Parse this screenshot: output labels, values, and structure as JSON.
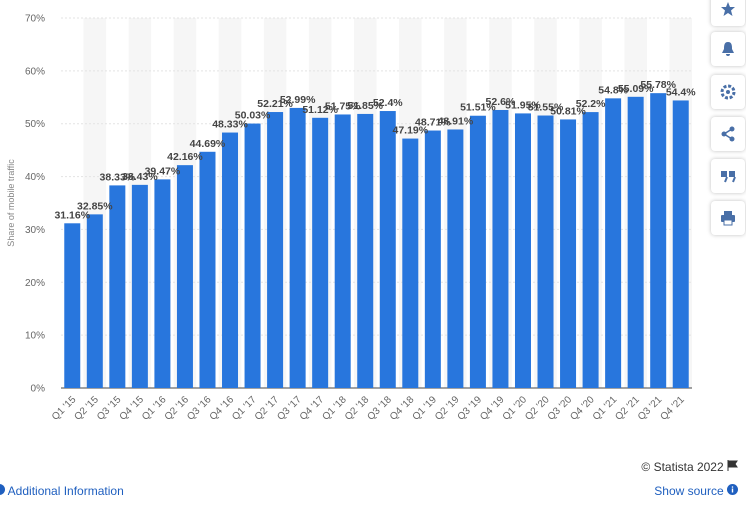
{
  "chart_data": {
    "type": "bar",
    "y_label": "Share of mobile traffic",
    "categories": [
      "Q1 '15",
      "Q2 '15",
      "Q3 '15",
      "Q4 '15",
      "Q1 '16",
      "Q2 '16",
      "Q3 '16",
      "Q4 '16",
      "Q1 '17",
      "Q2 '17",
      "Q3 '17",
      "Q4 '17",
      "Q1 '18",
      "Q2 '18",
      "Q3 '18",
      "Q4 '18",
      "Q1 '19",
      "Q2 '19",
      "Q3 '19",
      "Q4 '19",
      "Q1 '20",
      "Q2 '20",
      "Q3 '20",
      "Q4 '20",
      "Q1 '21",
      "Q2 '21",
      "Q3 '21",
      "Q4 '21"
    ],
    "values": [
      31.16,
      32.85,
      38.33,
      38.43,
      39.47,
      42.16,
      44.69,
      48.33,
      50.03,
      52.21,
      52.99,
      51.12,
      51.75,
      51.85,
      52.4,
      47.19,
      48.71,
      48.91,
      51.51,
      52.6,
      51.95,
      51.55,
      50.81,
      52.2,
      54.8,
      55.09,
      55.78,
      54.4
    ],
    "value_labels": [
      "31.16%",
      "32.85%",
      "38.33%",
      "38.43%",
      "39.47%",
      "42.16%",
      "44.69%",
      "48.33%",
      "50.03%",
      "52.21%",
      "52.99%",
      "51.12%",
      "51.75%",
      "51.85%",
      "52.4%",
      "47.19%",
      "48.71%",
      "48.91%",
      "51.51%",
      "52.6%",
      "51.95%",
      "51.55%",
      "50.81%",
      "52.2%",
      "54.8%",
      "55.09%",
      "55.78%",
      "54.4%"
    ],
    "color": "#2876dd",
    "ylim": [
      0,
      70
    ],
    "yticks": [
      {
        "value": 0,
        "label": "0%"
      },
      {
        "value": 10,
        "label": "10%"
      },
      {
        "value": 20,
        "label": "20%"
      },
      {
        "value": 30,
        "label": "30%"
      },
      {
        "value": 40,
        "label": "40%"
      },
      {
        "value": 50,
        "label": "50%"
      },
      {
        "value": 60,
        "label": "60%"
      },
      {
        "value": 70,
        "label": "70%"
      }
    ],
    "grid": true
  },
  "footer": {
    "credit": "© Statista 2022",
    "additional_info": "Additional Information",
    "show_source": "Show source"
  }
}
